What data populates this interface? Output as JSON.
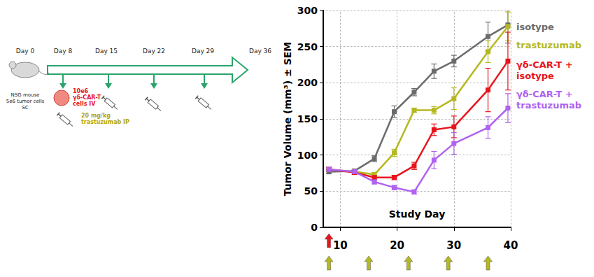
{
  "diagram": {
    "timeline": [
      "Day 0",
      "Day 8",
      "Day 15",
      "Day 22",
      "Day 29",
      "Day 36"
    ],
    "mouse": [
      "NSG mouse",
      "5e6 tumor cells",
      "SC"
    ],
    "cells": [
      "10e6",
      "γδ-CAR-T",
      "cells IV"
    ],
    "drug": [
      "20 mg/kg",
      "trastuzumab IP"
    ]
  },
  "chart_data": {
    "type": "line",
    "x_label": "Study Day",
    "y_label": "Tumor Volume (mm³) ± SEM",
    "x": [
      8,
      12.5,
      16,
      19.5,
      23,
      26.5,
      30,
      36,
      39.5
    ],
    "series": [
      {
        "name": "isotype",
        "color": "#6b6b6b",
        "values": [
          77,
          78,
          95,
          160,
          187,
          216,
          230,
          264,
          280
        ],
        "errors": [
          3,
          2,
          4,
          8,
          5,
          10,
          8,
          20,
          25
        ]
      },
      {
        "name": "trastuzumab",
        "color": "#b5b820",
        "values": [
          80,
          77,
          73,
          103,
          162,
          162,
          178,
          243,
          278
        ],
        "errors": [
          3,
          2,
          3,
          5,
          3,
          5,
          15,
          15,
          20
        ]
      },
      {
        "name": "γδ-CAR-T + isotype",
        "color": "#e8141c",
        "values": [
          80,
          76,
          69,
          69,
          85,
          135,
          139,
          190,
          230
        ],
        "errors": [
          3,
          3,
          3,
          3,
          5,
          8,
          15,
          30,
          40
        ]
      },
      {
        "name": "γδ-CAR-T + trastuzumab",
        "color": "#b062f0",
        "values": [
          80,
          77,
          63,
          55,
          49,
          93,
          116,
          138,
          165
        ],
        "errors": [
          3,
          2,
          3,
          3,
          3,
          12,
          15,
          15,
          20
        ]
      }
    ],
    "dose_markers": [
      {
        "days": [
          8
        ],
        "color": "#e8141c"
      },
      {
        "days": [
          8,
          15,
          22,
          29,
          36
        ],
        "color": "#b5b820"
      }
    ],
    "xlim": [
      7,
      40
    ],
    "xticks": [
      10,
      20,
      30,
      40
    ],
    "ylim": [
      0,
      300
    ],
    "yticks": [
      0,
      50,
      100,
      150,
      200,
      250,
      300
    ],
    "grid": true,
    "marker": "square",
    "legend": "right"
  }
}
